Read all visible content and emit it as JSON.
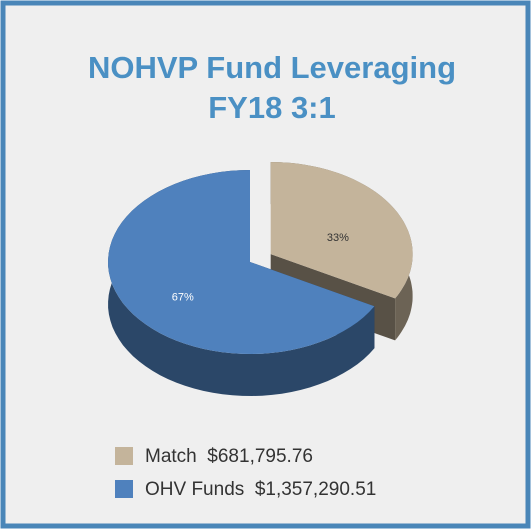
{
  "chart_data": {
    "type": "pie",
    "title": [
      "NOHVP Fund Leveraging",
      "FY18 3:1"
    ],
    "categories": [
      "Match  $681,795.76",
      "OHV Funds  $1,357,290.51"
    ],
    "values": [
      33,
      67
    ],
    "value_labels": [
      "33%",
      "67%"
    ],
    "colors": [
      "#c4b49b",
      "#4f81bd"
    ],
    "legend": "bottom"
  }
}
